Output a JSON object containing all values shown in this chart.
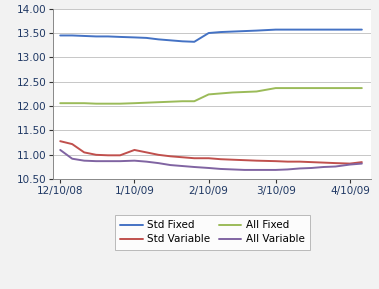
{
  "title": "",
  "ylim": [
    10.5,
    14.0
  ],
  "yticks": [
    10.5,
    11.0,
    11.5,
    12.0,
    12.5,
    13.0,
    13.5,
    14.0
  ],
  "x_labels": [
    "12/10/08",
    "1/10/09",
    "2/10/09",
    "3/10/09",
    "4/10/09"
  ],
  "series": {
    "Std Fixed": {
      "color": "#4472C4",
      "x_offsets": [
        0,
        5,
        10,
        15,
        20,
        25,
        31,
        36,
        41,
        46,
        51,
        56,
        62,
        67,
        72,
        77,
        82,
        90,
        95,
        100,
        105,
        110,
        115,
        121,
        126
      ],
      "y": [
        13.45,
        13.45,
        13.44,
        13.43,
        13.43,
        13.42,
        13.41,
        13.4,
        13.37,
        13.35,
        13.33,
        13.32,
        13.5,
        13.52,
        13.53,
        13.54,
        13.55,
        13.57,
        13.57,
        13.57,
        13.57,
        13.57,
        13.57,
        13.57,
        13.57
      ]
    },
    "Std Variable": {
      "color": "#C0504D",
      "x_offsets": [
        0,
        5,
        10,
        15,
        20,
        25,
        31,
        36,
        41,
        46,
        51,
        56,
        62,
        67,
        72,
        77,
        82,
        90,
        95,
        100,
        105,
        110,
        115,
        121,
        126
      ],
      "y": [
        11.28,
        11.22,
        11.05,
        11.0,
        10.99,
        10.99,
        11.1,
        11.05,
        11.0,
        10.97,
        10.95,
        10.93,
        10.93,
        10.91,
        10.9,
        10.89,
        10.88,
        10.87,
        10.86,
        10.86,
        10.85,
        10.84,
        10.83,
        10.82,
        10.85
      ]
    },
    "All Fixed": {
      "color": "#9BBB59",
      "x_offsets": [
        0,
        5,
        10,
        15,
        20,
        25,
        31,
        36,
        41,
        46,
        51,
        56,
        62,
        67,
        72,
        77,
        82,
        90,
        95,
        100,
        105,
        110,
        115,
        121,
        126
      ],
      "y": [
        12.06,
        12.06,
        12.06,
        12.05,
        12.05,
        12.05,
        12.06,
        12.07,
        12.08,
        12.09,
        12.1,
        12.1,
        12.24,
        12.26,
        12.28,
        12.29,
        12.3,
        12.37,
        12.37,
        12.37,
        12.37,
        12.37,
        12.37,
        12.37,
        12.37
      ]
    },
    "All Variable": {
      "color": "#8064A2",
      "x_offsets": [
        0,
        5,
        10,
        15,
        20,
        25,
        31,
        36,
        41,
        46,
        51,
        56,
        62,
        67,
        72,
        77,
        82,
        90,
        95,
        100,
        105,
        110,
        115,
        121,
        126
      ],
      "y": [
        11.1,
        10.92,
        10.88,
        10.87,
        10.87,
        10.87,
        10.88,
        10.86,
        10.83,
        10.79,
        10.77,
        10.75,
        10.73,
        10.71,
        10.7,
        10.69,
        10.69,
        10.69,
        10.7,
        10.72,
        10.73,
        10.75,
        10.76,
        10.8,
        10.82
      ]
    }
  },
  "legend_order": [
    "Std Fixed",
    "Std Variable",
    "All Fixed",
    "All Variable"
  ],
  "background_color": "#F2F2F2",
  "plot_bg": "#FFFFFF",
  "grid_color": "#BEBEBE",
  "x_tick_positions": [
    0,
    31,
    62,
    90,
    121
  ],
  "xlim": [
    -3,
    130
  ]
}
